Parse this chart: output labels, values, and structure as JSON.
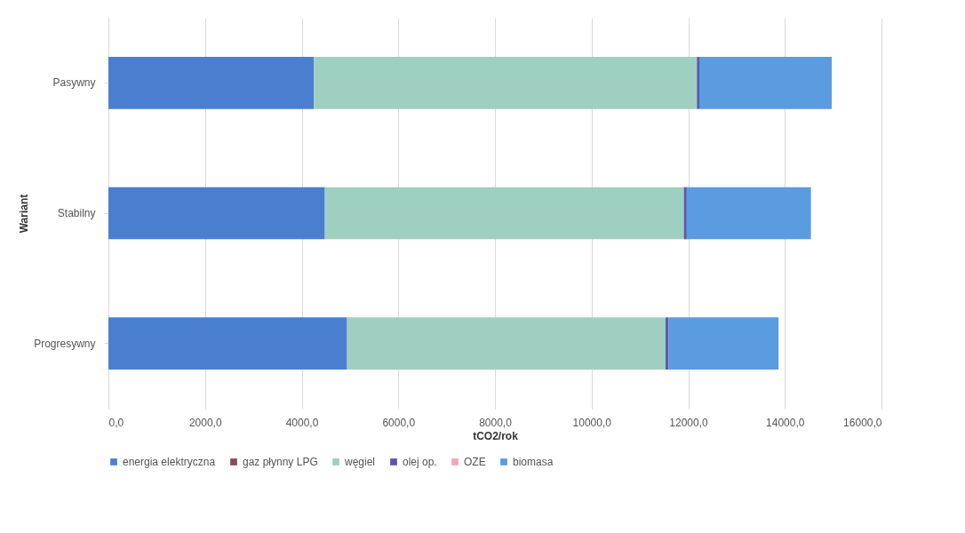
{
  "chart_data": {
    "type": "bar",
    "orientation": "horizontal",
    "stacked": true,
    "categories": [
      "Pasywny",
      "Stabilny",
      "Progresywny"
    ],
    "xlabel": "tCO2/rok",
    "ylabel": "Wariant",
    "xlim": [
      0,
      16000
    ],
    "xticks": [
      {
        "value": 0,
        "label": "0,0"
      },
      {
        "value": 2000,
        "label": "2000,0"
      },
      {
        "value": 4000,
        "label": "4000,0"
      },
      {
        "value": 6000,
        "label": "6000,0"
      },
      {
        "value": 8000,
        "label": "8000,0"
      },
      {
        "value": 10000,
        "label": "10000,0"
      },
      {
        "value": 12000,
        "label": "12000,0"
      },
      {
        "value": 14000,
        "label": "14000,0"
      },
      {
        "value": 16000,
        "label": "16000,0"
      }
    ],
    "grid": "x",
    "legend": "bottom",
    "series": [
      {
        "name": "energia elektryczna",
        "color": "#4a7fd0",
        "values": [
          4250,
          4480,
          4940
        ]
      },
      {
        "name": "gaz płynny LPG",
        "color": "#8b4a5e",
        "values": [
          0,
          0,
          0
        ]
      },
      {
        "name": "węgiel",
        "color": "#9fcfc0",
        "values": [
          7930,
          7430,
          6590
        ]
      },
      {
        "name": "olej op.",
        "color": "#5b5aa8",
        "values": [
          50,
          60,
          60
        ]
      },
      {
        "name": "OZE",
        "color": "#f4a6b8",
        "values": [
          0,
          0,
          0
        ]
      },
      {
        "name": "biomasa",
        "color": "#5b9be0",
        "values": [
          2740,
          2570,
          2280
        ]
      }
    ]
  }
}
